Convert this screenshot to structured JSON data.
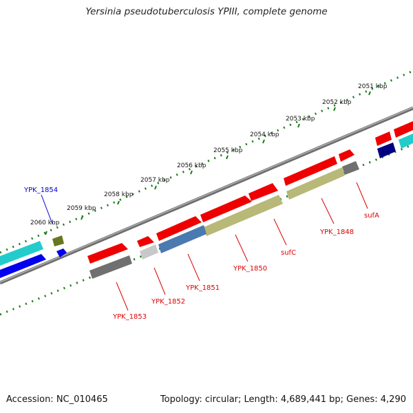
{
  "title": "Yersinia pseudotuberculosis YPIII, complete genome",
  "footer": {
    "accession": "Accession: NC_010465",
    "topology": "Topology: circular; Length: 4,689,441 bp; Genes: 4,290"
  },
  "ticks": [
    {
      "label": "2051 kbp"
    },
    {
      "label": "2052 kbp"
    },
    {
      "label": "2053 kbp"
    },
    {
      "label": "2054 kbp"
    },
    {
      "label": "2055 kbp"
    },
    {
      "label": "2056 kbp"
    },
    {
      "label": "2057 kbp"
    },
    {
      "label": "2058 kbp"
    },
    {
      "label": "2059 kbp"
    },
    {
      "label": "2060 kbp"
    }
  ],
  "gene_labels": [
    {
      "text": "YPK_1854",
      "color": "#0000cc"
    },
    {
      "text": "YPK_1853",
      "color": "#dd0000"
    },
    {
      "text": "YPK_1852",
      "color": "#dd0000"
    },
    {
      "text": "YPK_1851",
      "color": "#dd0000"
    },
    {
      "text": "YPK_1850",
      "color": "#dd0000"
    },
    {
      "text": "sufC",
      "color": "#dd0000"
    },
    {
      "text": "YPK_1848",
      "color": "#dd0000"
    },
    {
      "text": "sufA",
      "color": "#dd0000"
    }
  ],
  "colors": {
    "backbone": "#7a7a7a",
    "tick_dots": "#1a7a1a",
    "cds_red": "#ee0000",
    "cds_olive": "#b8b878",
    "cds_steel": "#4a7ab0",
    "cds_grey": "#707070",
    "cds_light_grey": "#c8c8c8",
    "cds_cyan": "#22cccc",
    "cds_blue": "#0000ee",
    "cds_navy": "#000080",
    "cds_green": "#667722"
  }
}
